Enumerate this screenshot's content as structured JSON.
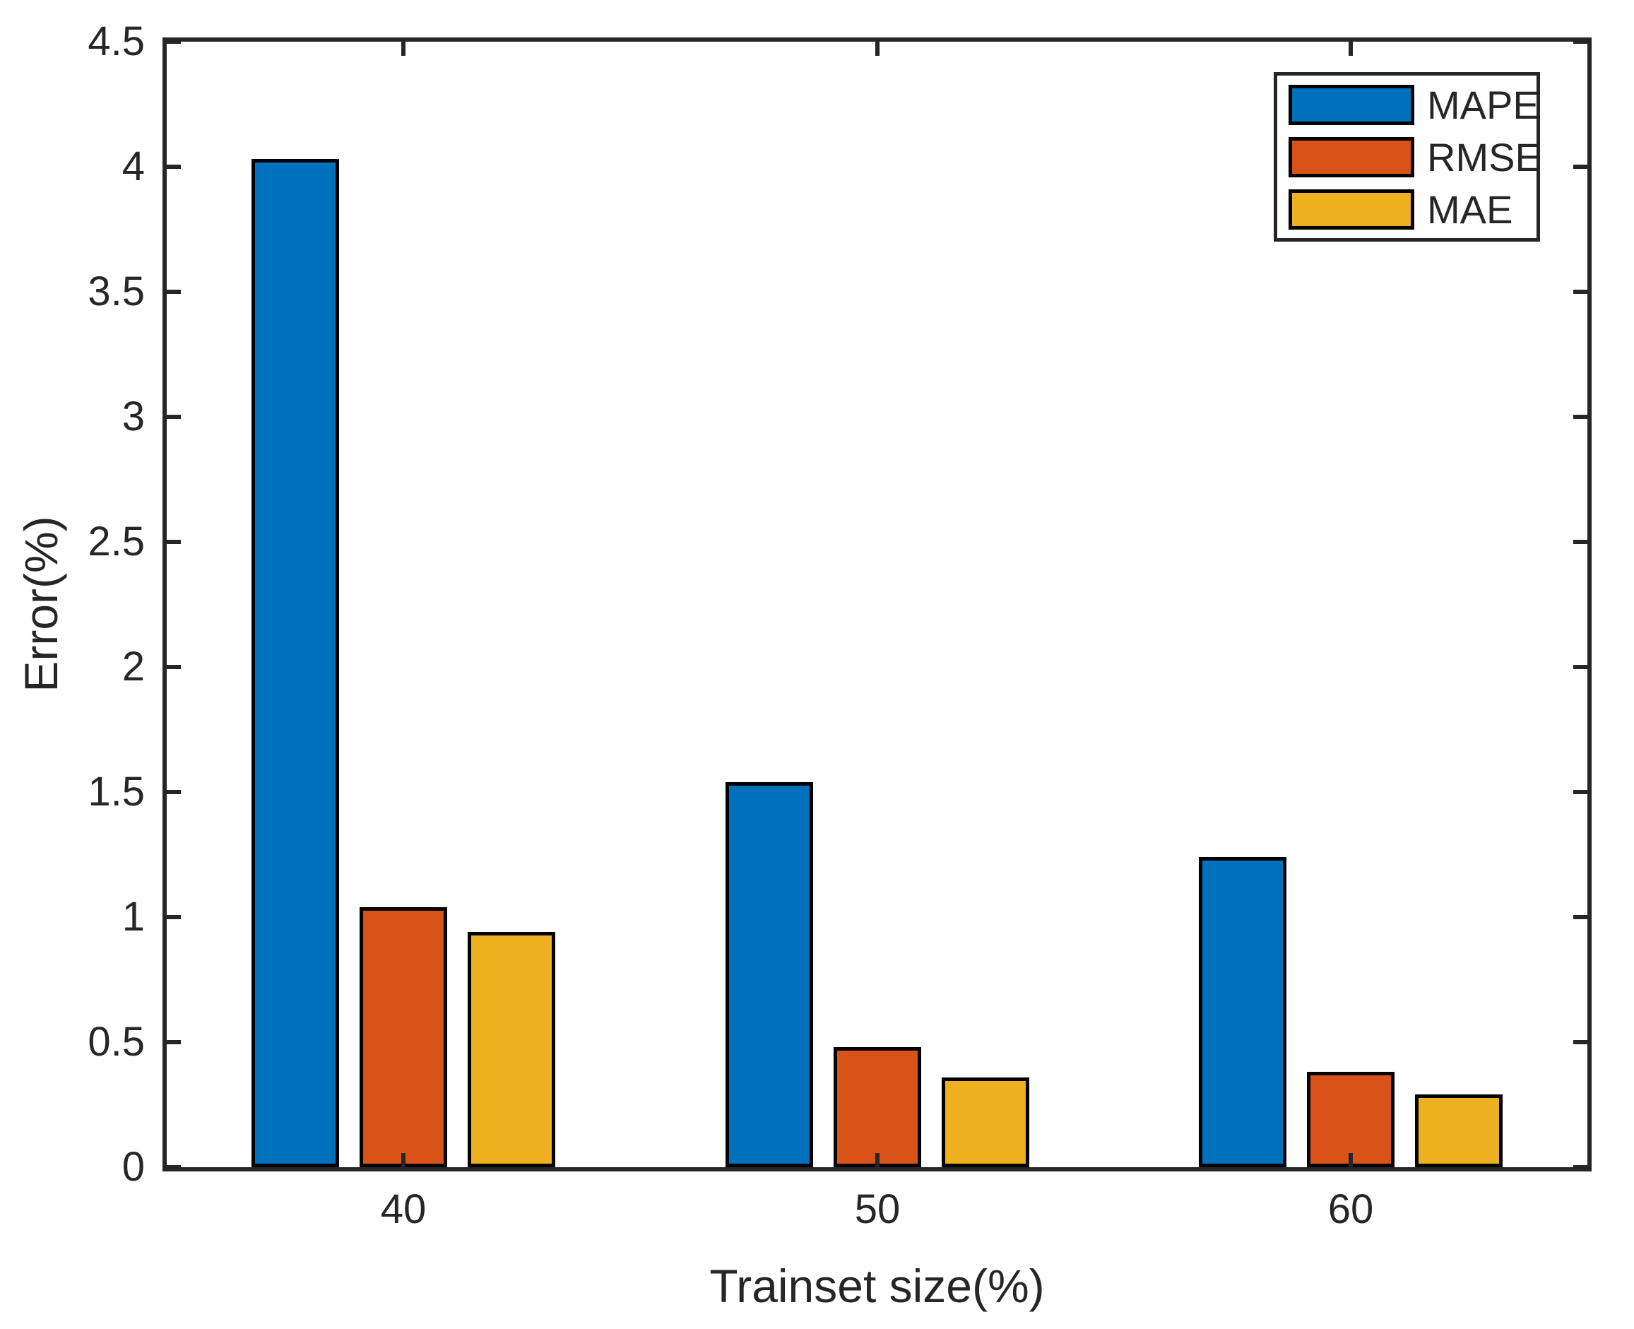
{
  "chart_data": {
    "type": "bar",
    "title": "",
    "xlabel": "Trainset size(%)",
    "ylabel": "Error(%)",
    "categories": [
      "40",
      "50",
      "60"
    ],
    "series": [
      {
        "name": "MAPE",
        "color": "#0072BD",
        "values": [
          4.03,
          1.54,
          1.24
        ]
      },
      {
        "name": "RMSE",
        "color": "#D95319",
        "values": [
          1.04,
          0.48,
          0.38
        ]
      },
      {
        "name": "MAE",
        "color": "#EDB120",
        "values": [
          0.94,
          0.36,
          0.29
        ]
      }
    ],
    "ylim": [
      0,
      4.5
    ],
    "y_ticks": [
      0,
      0.5,
      1,
      1.5,
      2,
      2.5,
      3,
      3.5,
      4,
      4.5
    ],
    "x_tick_labels": [
      "40",
      "50",
      "60"
    ],
    "legend": {
      "entries": [
        "MAPE",
        "RMSE",
        "MAE"
      ],
      "position": "northeast"
    },
    "grid": false,
    "axis_color": "#262626",
    "bar_edge_color": "#000000",
    "background_color": "#ffffff"
  }
}
